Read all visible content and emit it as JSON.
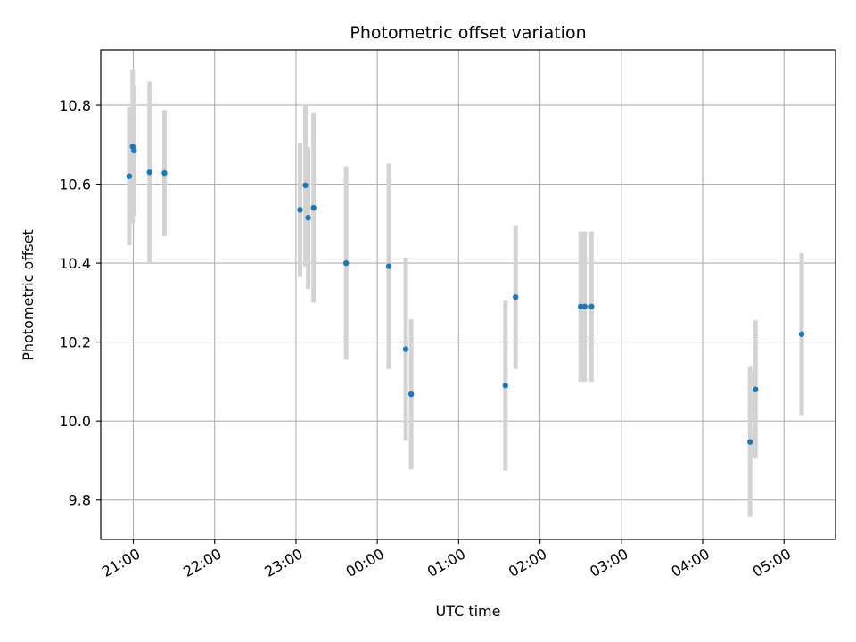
{
  "chart_data": {
    "type": "scatter",
    "title": "Photometric offset variation",
    "xlabel": "UTC time",
    "ylabel": "Photometric offset",
    "x_axis": "datetime",
    "xlim": [
      "2000-01-01T20:36:00",
      "2000-01-02T05:38:00"
    ],
    "ylim": [
      9.7,
      10.94
    ],
    "xticks": [
      {
        "t": "2000-01-01T21:00:00",
        "label": "21:00"
      },
      {
        "t": "2000-01-01T22:00:00",
        "label": "22:00"
      },
      {
        "t": "2000-01-01T23:00:00",
        "label": "23:00"
      },
      {
        "t": "2000-01-02T00:00:00",
        "label": "00:00"
      },
      {
        "t": "2000-01-02T01:00:00",
        "label": "01:00"
      },
      {
        "t": "2000-01-02T02:00:00",
        "label": "02:00"
      },
      {
        "t": "2000-01-02T03:00:00",
        "label": "03:00"
      },
      {
        "t": "2000-01-02T04:00:00",
        "label": "04:00"
      },
      {
        "t": "2000-01-02T05:00:00",
        "label": "05:00"
      }
    ],
    "yticks": [
      {
        "v": 9.8,
        "label": "9.8"
      },
      {
        "v": 10.0,
        "label": "10.0"
      },
      {
        "v": 10.2,
        "label": "10.2"
      },
      {
        "v": 10.4,
        "label": "10.4"
      },
      {
        "v": 10.6,
        "label": "10.6"
      },
      {
        "v": 10.8,
        "label": "10.8"
      }
    ],
    "grid": true,
    "colors": {
      "point": "#1f77b4",
      "errorbar": "#d3d3d3",
      "grid": "#b0b0b0"
    },
    "points": [
      {
        "t": "2000-01-01T20:57:00",
        "y": 10.62,
        "err": 0.175
      },
      {
        "t": "2000-01-01T20:59:30",
        "y": 10.695,
        "err": 0.195
      },
      {
        "t": "2000-01-01T21:00:30",
        "y": 10.685,
        "err": 0.165
      },
      {
        "t": "2000-01-01T21:12:00",
        "y": 10.63,
        "err": 0.23
      },
      {
        "t": "2000-01-01T21:23:00",
        "y": 10.628,
        "err": 0.16
      },
      {
        "t": "2000-01-01T23:03:00",
        "y": 10.535,
        "err": 0.17
      },
      {
        "t": "2000-01-01T23:07:00",
        "y": 10.597,
        "err": 0.205
      },
      {
        "t": "2000-01-01T23:09:00",
        "y": 10.515,
        "err": 0.18
      },
      {
        "t": "2000-01-01T23:13:00",
        "y": 10.54,
        "err": 0.24
      },
      {
        "t": "2000-01-01T23:37:00",
        "y": 10.4,
        "err": 0.245
      },
      {
        "t": "2000-01-02T00:08:30",
        "y": 10.392,
        "err": 0.26
      },
      {
        "t": "2000-01-02T00:21:00",
        "y": 10.182,
        "err": 0.232
      },
      {
        "t": "2000-01-02T00:25:00",
        "y": 10.068,
        "err": 0.19
      },
      {
        "t": "2000-01-02T01:34:30",
        "y": 10.09,
        "err": 0.215
      },
      {
        "t": "2000-01-02T01:42:00",
        "y": 10.314,
        "err": 0.182
      },
      {
        "t": "2000-01-02T02:30:00",
        "y": 10.29,
        "err": 0.19
      },
      {
        "t": "2000-01-02T02:33:00",
        "y": 10.29,
        "err": 0.19
      },
      {
        "t": "2000-01-02T02:38:00",
        "y": 10.29,
        "err": 0.19
      },
      {
        "t": "2000-01-02T04:35:00",
        "y": 9.947,
        "err": 0.19
      },
      {
        "t": "2000-01-02T04:39:00",
        "y": 10.08,
        "err": 0.175
      },
      {
        "t": "2000-01-02T05:13:00",
        "y": 10.22,
        "err": 0.205
      }
    ]
  }
}
